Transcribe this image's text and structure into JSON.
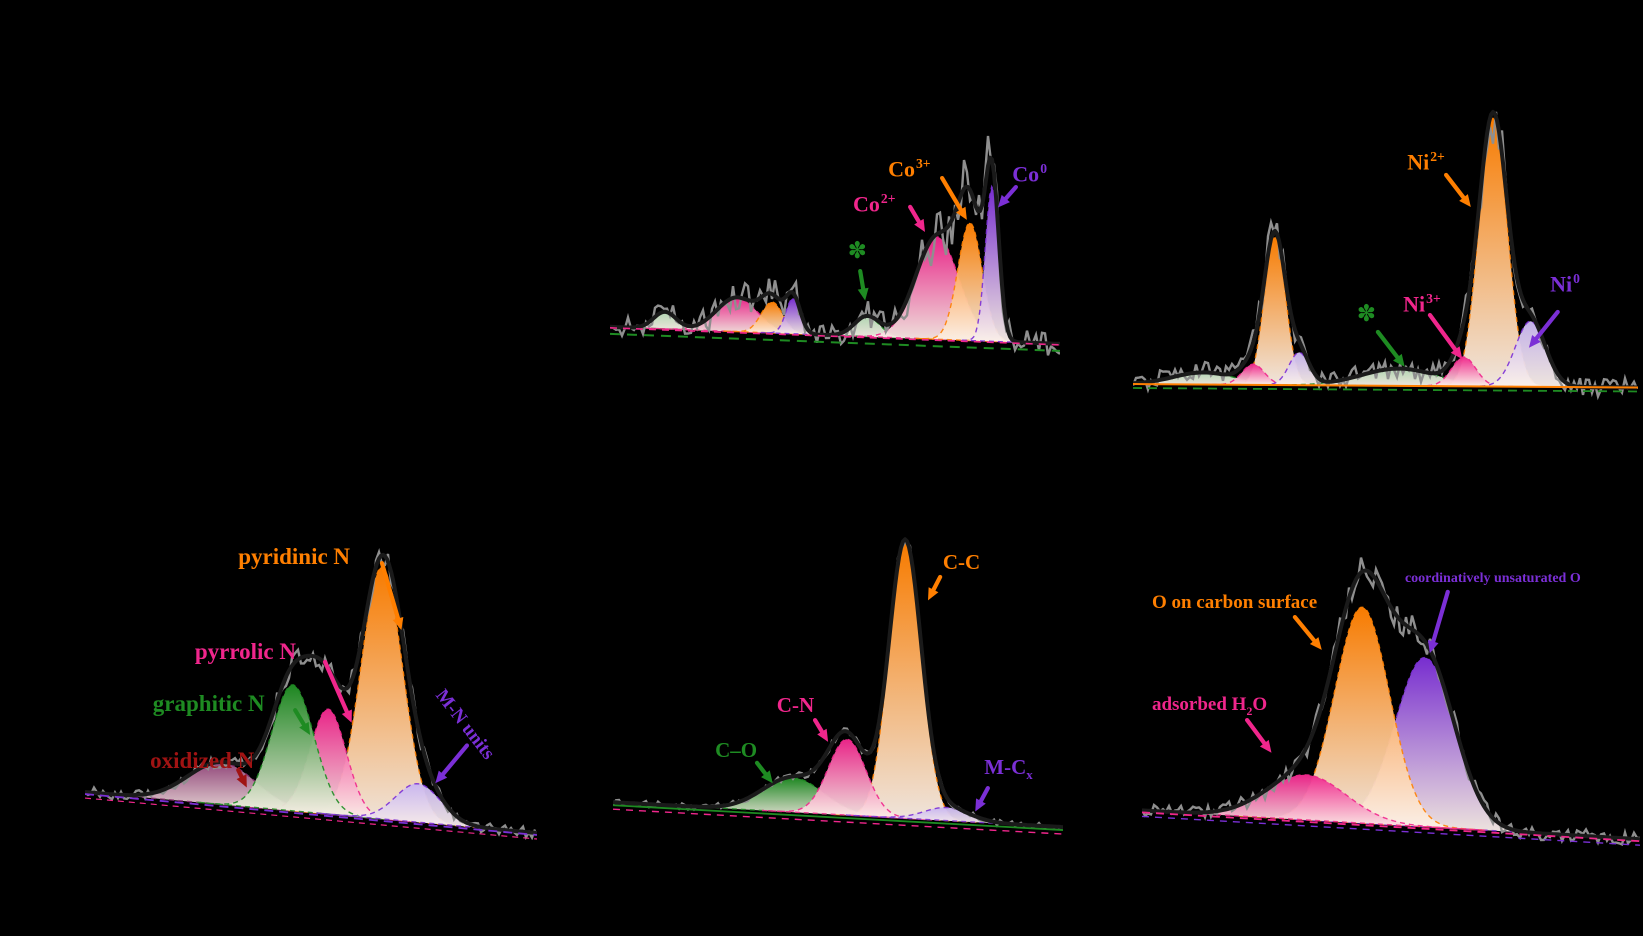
{
  "figure": {
    "background": "#000000"
  },
  "chart_data": [
    {
      "id": "co-2p",
      "type": "area",
      "axes_visible": false,
      "x_range": [
        0,
        1
      ],
      "raw_color": "#8F8F8F",
      "envelope_color": "#1A1A1A",
      "baseline": {
        "left": 0.835,
        "right": 0.89
      },
      "baseline_lines": [
        {
          "color": "#1E8B22",
          "dash": "10 7",
          "dy": 7,
          "width": 2
        },
        {
          "color": "#F0268C",
          "dash": "7 6",
          "dy": 1,
          "width": 1.6
        }
      ],
      "noise": {
        "amplitude": 0.07,
        "seed": 11,
        "step": 3,
        "signal_boost": 1.2
      },
      "peaks": [
        {
          "name": "satellite a",
          "color": "#1E8B22",
          "fill": "#B7DCB7",
          "center": 0.122,
          "amplitude": 0.055,
          "width": 0.025
        },
        {
          "name": "Co2+ 2p1/2",
          "color": "#F0268C",
          "center": 0.282,
          "amplitude": 0.11,
          "width": 0.045
        },
        {
          "name": "Co3+ 2p1/2",
          "color": "#FF7F00",
          "center": 0.36,
          "amplitude": 0.1,
          "width": 0.024
        },
        {
          "name": "Co0 2p1/2",
          "color": "#7B2FD6",
          "center": 0.407,
          "amplitude": 0.115,
          "width": 0.016
        },
        {
          "name": "satellite b",
          "color": "#1E8B22",
          "fill": "#B7DCB7",
          "center": 0.571,
          "amplitude": 0.065,
          "width": 0.028
        },
        {
          "name": "Co2+ 2p3/2",
          "color": "#F0268C",
          "center": 0.727,
          "amplitude": 0.33,
          "width": 0.048
        },
        {
          "name": "Co3+ 2p3/2",
          "color": "#FF7F00",
          "center": 0.8,
          "amplitude": 0.38,
          "width": 0.027
        },
        {
          "name": "Co0 2p3/2",
          "color": "#7B2FD6",
          "center": 0.849,
          "amplitude": 0.5,
          "width": 0.015
        }
      ],
      "labels": [
        {
          "text": "Co",
          "sup": "2+",
          "color": "#F0268C",
          "x": 0.54,
          "y": 0.4,
          "size": 22,
          "arrow": {
            "x1": 0.667,
            "y1": 0.448,
            "x2": 0.7,
            "y2": 0.529
          }
        },
        {
          "text": "Co",
          "sup": "3+",
          "color": "#FF7F00",
          "x": 0.618,
          "y": 0.287,
          "size": 22,
          "arrow": {
            "x1": 0.738,
            "y1": 0.355,
            "x2": 0.793,
            "y2": 0.49
          }
        },
        {
          "text": "Co",
          "sup": "0",
          "color": "#7B2FD6",
          "x": 0.894,
          "y": 0.303,
          "size": 22,
          "arrow": {
            "x1": 0.902,
            "y1": 0.384,
            "x2": 0.862,
            "y2": 0.45
          }
        }
      ],
      "markers": [
        {
          "char": "✽",
          "color": "#1E8B22",
          "x": 0.528,
          "y": 0.555,
          "size": 23,
          "arrow": {
            "x1": 0.556,
            "y1": 0.655,
            "x2": 0.567,
            "y2": 0.75
          }
        }
      ]
    },
    {
      "id": "ni-2p",
      "type": "area",
      "axes_visible": false,
      "x_range": [
        0,
        1
      ],
      "raw_color": "#8F8F8F",
      "envelope_color": "#1A1A1A",
      "baseline": {
        "left": 0.945,
        "right": 0.955
      },
      "baseline_lines": [
        {
          "color": "#FF7F00",
          "dash": "",
          "dy": 0,
          "width": 2
        },
        {
          "color": "#1E8B22",
          "dash": "9 6",
          "dy": 4,
          "width": 1.8
        }
      ],
      "noise": {
        "amplitude": 0.05,
        "seed": 22,
        "step": 3,
        "signal_boost": 1.3
      },
      "peaks": [
        {
          "name": "satellite a",
          "color": "#1E8B22",
          "fill": "#B7DCB7",
          "center": 0.14,
          "amplitude": 0.035,
          "width": 0.06
        },
        {
          "name": "Ni2+ 2p1/2",
          "color": "#FF7F00",
          "center": 0.281,
          "amplitude": 0.43,
          "width": 0.021
        },
        {
          "name": "Ni3+ 2p1/2",
          "color": "#F0268C",
          "center": 0.238,
          "amplitude": 0.06,
          "width": 0.022
        },
        {
          "name": "Ni0 2p1/2",
          "color": "#7B2FD6",
          "fill": "#C9B6F0",
          "center": 0.329,
          "amplitude": 0.095,
          "width": 0.02
        },
        {
          "name": "satellite b",
          "color": "#1E8B22",
          "fill": "#B7DCB7",
          "center": 0.527,
          "amplitude": 0.05,
          "width": 0.075
        },
        {
          "name": "Ni2+ 2p3/2",
          "color": "#FF7F00",
          "center": 0.713,
          "amplitude": 0.78,
          "width": 0.028
        },
        {
          "name": "Ni3+ 2p3/2",
          "color": "#F0268C",
          "center": 0.655,
          "amplitude": 0.085,
          "width": 0.024
        },
        {
          "name": "Ni0 2p3/2",
          "color": "#7B2FD6",
          "fill": "#C9B6F0",
          "center": 0.787,
          "amplitude": 0.19,
          "width": 0.03
        }
      ],
      "labels": [
        {
          "text": "Ni",
          "sup": "2+",
          "color": "#FF7F00",
          "x": 0.543,
          "y": 0.267,
          "size": 22,
          "arrow": {
            "x1": 0.62,
            "y1": 0.339,
            "x2": 0.669,
            "y2": 0.432
          }
        },
        {
          "text": "Ni",
          "sup": "3+",
          "color": "#F0268C",
          "x": 0.535,
          "y": 0.678,
          "size": 22,
          "arrow": {
            "x1": 0.588,
            "y1": 0.745,
            "x2": 0.652,
            "y2": 0.873
          }
        },
        {
          "text": "Ni",
          "sup": "0",
          "color": "#7B2FD6",
          "x": 0.826,
          "y": 0.62,
          "size": 22,
          "arrow": {
            "x1": 0.841,
            "y1": 0.736,
            "x2": 0.784,
            "y2": 0.84
          }
        }
      ],
      "markers": [
        {
          "char": "✽",
          "color": "#1E8B22",
          "x": 0.443,
          "y": 0.71,
          "size": 23,
          "arrow": {
            "x1": 0.485,
            "y1": 0.794,
            "x2": 0.538,
            "y2": 0.895
          }
        }
      ]
    },
    {
      "id": "n-1s",
      "type": "area",
      "axes_visible": false,
      "x_range": [
        0,
        1
      ],
      "raw_color": "#8F8F8F",
      "envelope_color": "#1A1A1A",
      "baseline": {
        "left": 0.863,
        "right": 0.98
      },
      "baseline_lines": [
        {
          "color": "#7B2FD6",
          "dash": "9 6",
          "dy": 2,
          "width": 1.8
        },
        {
          "color": "#F0268C",
          "dash": "6 5",
          "dy": 6,
          "width": 1.2
        }
      ],
      "noise": {
        "amplitude": 0.028,
        "seed": 33,
        "step": 3,
        "signal_boost": 0.8
      },
      "peaks": [
        {
          "name": "oxidized N",
          "color": "#8A3172",
          "fill": "#96497E",
          "center": 0.303,
          "amplitude": 0.12,
          "width": 0.075
        },
        {
          "name": "pyridinic N",
          "color": "#FF7F00",
          "center": 0.657,
          "amplitude": 0.72,
          "width": 0.046
        },
        {
          "name": "pyrrolic N",
          "color": "#F0268C",
          "center": 0.538,
          "amplitude": 0.3,
          "width": 0.04
        },
        {
          "name": "graphitic N",
          "color": "#1E8B22",
          "center": 0.46,
          "amplitude": 0.36,
          "width": 0.047
        },
        {
          "name": "M-N units",
          "color": "#7B2FD6",
          "fill": "#C9B6F0",
          "center": 0.737,
          "amplitude": 0.11,
          "width": 0.05
        }
      ],
      "labels": [
        {
          "text": "pyridinic N",
          "color": "#FF7F00",
          "x": 0.339,
          "y": 0.157,
          "size": 23,
          "arrow": {
            "x1": 0.657,
            "y1": 0.209,
            "x2": 0.7,
            "y2": 0.4
          }
        },
        {
          "text": "pyrrolic N",
          "color": "#F0268C",
          "x": 0.243,
          "y": 0.428,
          "size": 23,
          "arrow": {
            "x1": 0.531,
            "y1": 0.491,
            "x2": 0.59,
            "y2": 0.665
          }
        },
        {
          "text": "graphitic N",
          "color": "#1E8B22",
          "x": 0.15,
          "y": 0.577,
          "size": 23,
          "arrow": {
            "x1": 0.465,
            "y1": 0.629,
            "x2": 0.498,
            "y2": 0.7
          }
        },
        {
          "text": "oxidized N",
          "color": "#A01313",
          "x": 0.144,
          "y": 0.74,
          "size": 23,
          "arrow": {
            "x1": 0.339,
            "y1": 0.8,
            "x2": 0.358,
            "y2": 0.85
          }
        },
        {
          "text": "M-N units",
          "color": "#7B2FD6",
          "x": 0.8,
          "y": 0.56,
          "size": 19,
          "rotation": 52,
          "arrow": {
            "x1": 0.845,
            "y1": 0.73,
            "x2": 0.775,
            "y2": 0.838
          }
        }
      ]
    },
    {
      "id": "c-1s",
      "type": "area",
      "axes_visible": false,
      "x_range": [
        0,
        1
      ],
      "raw_color": "#8F8F8F",
      "envelope_color": "#1A1A1A",
      "baseline": {
        "left": 0.905,
        "right": 0.977
      },
      "baseline_lines": [
        {
          "color": "#1E8B22",
          "dash": "",
          "dy": 3,
          "width": 1.8
        },
        {
          "color": "#F0268C",
          "dash": "7 6",
          "dy": 7,
          "width": 1.4
        }
      ],
      "noise": {
        "amplitude": 0.016,
        "seed": 44,
        "step": 3,
        "signal_boost": 0.6
      },
      "peaks": [
        {
          "name": "C-O",
          "color": "#1E8B22",
          "center": 0.4,
          "amplitude": 0.1,
          "width": 0.068
        },
        {
          "name": "C-C",
          "color": "#FF7F00",
          "center": 0.649,
          "amplitude": 0.8,
          "width": 0.036
        },
        {
          "name": "C-N",
          "color": "#F0268C",
          "center": 0.52,
          "amplitude": 0.22,
          "width": 0.042
        },
        {
          "name": "M-Cx",
          "color": "#7B2FD6",
          "fill": "#C9B6F0",
          "center": 0.742,
          "amplitude": 0.038,
          "width": 0.05
        }
      ],
      "labels": [
        {
          "text": "C-C",
          "color": "#FF7F00",
          "x": 0.733,
          "y": 0.18,
          "size": 21,
          "arrow": {
            "x1": 0.727,
            "y1": 0.252,
            "x2": 0.7,
            "y2": 0.32
          }
        },
        {
          "text": "C-N",
          "color": "#F0268C",
          "x": 0.364,
          "y": 0.594,
          "size": 21,
          "arrow": {
            "x1": 0.449,
            "y1": 0.667,
            "x2": 0.478,
            "y2": 0.73
          }
        },
        {
          "text": "C–O",
          "color": "#1E8B22",
          "x": 0.227,
          "y": 0.725,
          "size": 21,
          "arrow": {
            "x1": 0.32,
            "y1": 0.791,
            "x2": 0.355,
            "y2": 0.85
          }
        },
        {
          "text": "M-C",
          "sub": "x",
          "color": "#7B2FD6",
          "x": 0.825,
          "y": 0.774,
          "size": 21,
          "arrow": {
            "x1": 0.833,
            "y1": 0.864,
            "x2": 0.805,
            "y2": 0.932
          }
        }
      ]
    },
    {
      "id": "o-1s",
      "type": "area",
      "axes_visible": false,
      "x_range": [
        0,
        1
      ],
      "raw_color": "#8F8F8F",
      "envelope_color": "#1A1A1A",
      "baseline": {
        "left": 0.89,
        "right": 0.97
      },
      "baseline_lines": [
        {
          "color": "#F0268C",
          "dash": "8 6",
          "dy": 2,
          "width": 1.8
        },
        {
          "color": "#7B2FD6",
          "dash": "7 6",
          "dy": 6,
          "width": 1.4
        }
      ],
      "noise": {
        "amplitude": 0.035,
        "seed": 55,
        "step": 3,
        "signal_boost": 0.8
      },
      "peaks": [
        {
          "name": "coordinatively unsaturated O",
          "color": "#7B2FD6",
          "center": 0.568,
          "amplitude": 0.47,
          "width": 0.06
        },
        {
          "name": "O on carbon surface",
          "color": "#FF7F00",
          "center": 0.442,
          "amplitude": 0.6,
          "width": 0.055
        },
        {
          "name": "adsorbed H2O",
          "color": "#F0268C",
          "center": 0.33,
          "amplitude": 0.125,
          "width": 0.08
        }
      ],
      "labels": [
        {
          "text": "O on carbon surface",
          "color": "#FF7F00",
          "x": 0.02,
          "y": 0.286,
          "size": 19,
          "arrow": {
            "x1": 0.307,
            "y1": 0.353,
            "x2": 0.361,
            "y2": 0.444
          }
        },
        {
          "text": "adsorbed H",
          "sub": "2",
          "post": "O",
          "color": "#F0268C",
          "x": 0.02,
          "y": 0.569,
          "size": 19,
          "arrow": {
            "x1": 0.211,
            "y1": 0.639,
            "x2": 0.26,
            "y2": 0.73
          }
        },
        {
          "text": "coordinatively unsaturated O",
          "color": "#7B2FD6",
          "x": 0.528,
          "y": 0.228,
          "size": 14,
          "arrow": {
            "x1": 0.614,
            "y1": 0.283,
            "x2": 0.578,
            "y2": 0.453
          }
        }
      ]
    }
  ]
}
